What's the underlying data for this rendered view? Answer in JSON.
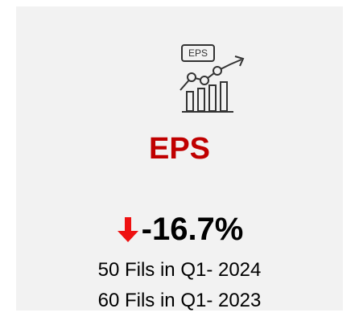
{
  "card": {
    "icon_label": "EPS",
    "title": "EPS",
    "change": "-16.7%",
    "lines": [
      "50 Fils in Q1- 2024",
      "60 Fils in Q1- 2023"
    ]
  }
}
